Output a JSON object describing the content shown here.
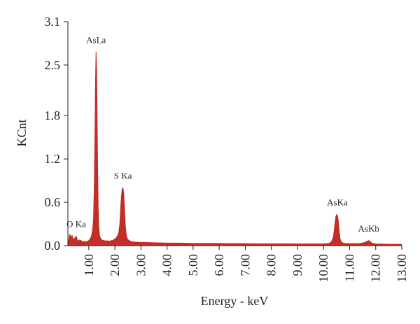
{
  "chart_data": {
    "type": "area",
    "title": "",
    "xlabel": "Energy - keV",
    "ylabel": "KCnt",
    "xlim": [
      0.2,
      13.0
    ],
    "ylim": [
      0.0,
      3.1
    ],
    "grid": false,
    "colors": {
      "series": "#c0271f",
      "axis": "#1f1f1f"
    },
    "x_ticks": [
      {
        "value": 1.0,
        "label": "1.00"
      },
      {
        "value": 2.0,
        "label": "2.00"
      },
      {
        "value": 3.0,
        "label": "3.00"
      },
      {
        "value": 4.0,
        "label": "4.00"
      },
      {
        "value": 5.0,
        "label": "5.00"
      },
      {
        "value": 6.0,
        "label": "6.00"
      },
      {
        "value": 7.0,
        "label": "7.00"
      },
      {
        "value": 8.0,
        "label": "8.00"
      },
      {
        "value": 9.0,
        "label": "9.00"
      },
      {
        "value": 10.0,
        "label": "10.00"
      },
      {
        "value": 11.0,
        "label": "11.00"
      },
      {
        "value": 12.0,
        "label": "12.00"
      },
      {
        "value": 13.0,
        "label": "13.00"
      }
    ],
    "y_ticks": [
      {
        "value": 0.0,
        "label": "0.0"
      },
      {
        "value": 0.6,
        "label": "0.6"
      },
      {
        "value": 1.2,
        "label": "1.2"
      },
      {
        "value": 1.8,
        "label": "1.8"
      },
      {
        "value": 2.5,
        "label": "2.5"
      },
      {
        "value": 3.1,
        "label": "3.1"
      }
    ],
    "peaks": [
      {
        "label": "O Ka",
        "x": 0.52,
        "y": 0.13
      },
      {
        "label": "AsLa",
        "x": 1.28,
        "y": 2.68
      },
      {
        "label": "S Ka",
        "x": 2.31,
        "y": 0.8
      },
      {
        "label": "AsKa",
        "x": 10.53,
        "y": 0.43
      },
      {
        "label": "AsKb",
        "x": 11.73,
        "y": 0.07
      }
    ],
    "series": [
      {
        "x": [
          0.2,
          0.25,
          0.28,
          0.32,
          0.36,
          0.4,
          0.45,
          0.5,
          0.52,
          0.55,
          0.6,
          0.65,
          0.7,
          0.75,
          0.8,
          0.85,
          0.9,
          0.95,
          1.0,
          1.05,
          1.1,
          1.14,
          1.18,
          1.21,
          1.24,
          1.26,
          1.28,
          1.3,
          1.32,
          1.34,
          1.36,
          1.38,
          1.41,
          1.45,
          1.5,
          1.55,
          1.6,
          1.65,
          1.7,
          1.75,
          1.8,
          1.85,
          1.9,
          1.95,
          2.0,
          2.05,
          2.1,
          2.15,
          2.19,
          2.22,
          2.25,
          2.28,
          2.31,
          2.34,
          2.37,
          2.4,
          2.44,
          2.48,
          2.55,
          2.6,
          2.7,
          2.8,
          2.9,
          3.0,
          3.5,
          4.0,
          4.5,
          5.0,
          5.5,
          6.0,
          6.5,
          7.0,
          7.5,
          8.0,
          8.5,
          9.0,
          9.5,
          10.0,
          10.2,
          10.3,
          10.38,
          10.43,
          10.47,
          10.5,
          10.53,
          10.56,
          10.59,
          10.63,
          10.68,
          10.75,
          10.85,
          11.0,
          11.2,
          11.4,
          11.55,
          11.65,
          11.7,
          11.73,
          11.76,
          11.8,
          11.88,
          12.0,
          12.2,
          12.5,
          12.8,
          13.0
        ],
        "values": [
          0.0,
          0.12,
          0.16,
          0.1,
          0.14,
          0.08,
          0.1,
          0.12,
          0.13,
          0.09,
          0.06,
          0.08,
          0.07,
          0.06,
          0.05,
          0.06,
          0.05,
          0.06,
          0.07,
          0.09,
          0.13,
          0.2,
          0.35,
          0.8,
          1.6,
          2.3,
          2.68,
          2.4,
          1.8,
          1.1,
          0.55,
          0.28,
          0.15,
          0.1,
          0.08,
          0.07,
          0.07,
          0.06,
          0.07,
          0.06,
          0.06,
          0.07,
          0.07,
          0.08,
          0.09,
          0.11,
          0.13,
          0.18,
          0.3,
          0.5,
          0.68,
          0.78,
          0.8,
          0.72,
          0.5,
          0.28,
          0.14,
          0.09,
          0.07,
          0.06,
          0.05,
          0.05,
          0.045,
          0.045,
          0.04,
          0.035,
          0.035,
          0.03,
          0.03,
          0.03,
          0.028,
          0.028,
          0.026,
          0.025,
          0.025,
          0.024,
          0.024,
          0.025,
          0.03,
          0.05,
          0.12,
          0.28,
          0.4,
          0.43,
          0.42,
          0.36,
          0.24,
          0.1,
          0.05,
          0.035,
          0.03,
          0.028,
          0.028,
          0.03,
          0.04,
          0.055,
          0.065,
          0.07,
          0.065,
          0.05,
          0.03,
          0.024,
          0.022,
          0.02,
          0.018,
          0.017
        ]
      }
    ]
  }
}
